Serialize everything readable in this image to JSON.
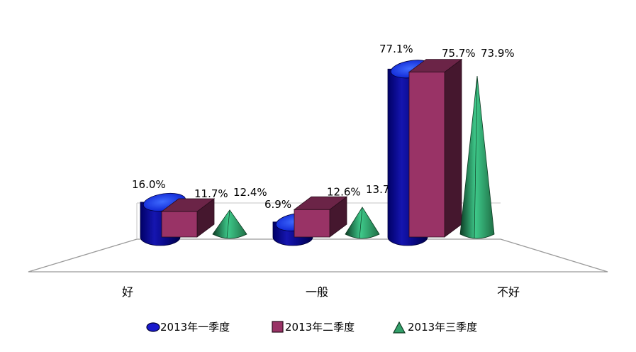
{
  "chart_data": {
    "type": "bar",
    "categories": [
      "好",
      "一般",
      "不好"
    ],
    "series": [
      {
        "name": "2013年一季度",
        "values": [
          16.0,
          6.9,
          77.1
        ],
        "labels": [
          "16.0%",
          "6.9%",
          "77.1%"
        ],
        "shape": "cylinder",
        "color": "#1a1aa6"
      },
      {
        "name": "2013年二季度",
        "values": [
          11.7,
          12.6,
          75.7
        ],
        "labels": [
          "11.7%",
          "12.6%",
          "75.7%"
        ],
        "shape": "box",
        "color": "#993366"
      },
      {
        "name": "2013年三季度",
        "values": [
          12.4,
          13.7,
          73.9
        ],
        "labels": [
          "12.4%",
          "13.7%",
          "73.9%"
        ],
        "shape": "cone",
        "color": "#33a06a"
      }
    ],
    "ylim": [
      0,
      100
    ],
    "grid": false,
    "legend_position": "bottom"
  }
}
